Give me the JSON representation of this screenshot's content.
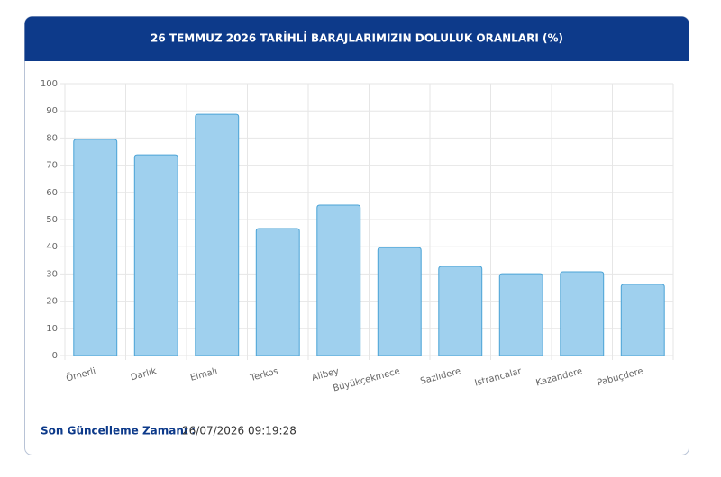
{
  "chart_data": {
    "type": "bar",
    "title": "26 TEMMUZ 2026 TARİHLİ BARAJLARIMIZIN DOLULUK ORANLARI (%)",
    "categories": [
      "Ömerli",
      "Darlık",
      "Elmalı",
      "Terkos",
      "Alibey",
      "Büyükçekmece",
      "Sazlıdere",
      "Istrancalar",
      "Kazandere",
      "Pabuçdere"
    ],
    "values": [
      79.5,
      73.8,
      88.7,
      46.7,
      55.3,
      39.7,
      32.8,
      30.1,
      30.8,
      26.2
    ],
    "color": "#9fd0ee",
    "ylim": [
      0,
      100
    ],
    "yticks": [
      0,
      10,
      20,
      30,
      40,
      50,
      60,
      70,
      80,
      90,
      100
    ],
    "grid": true
  },
  "footer": {
    "label": "Son Güncelleme Zamanı :",
    "value": "26/07/2026 09:19:28"
  }
}
